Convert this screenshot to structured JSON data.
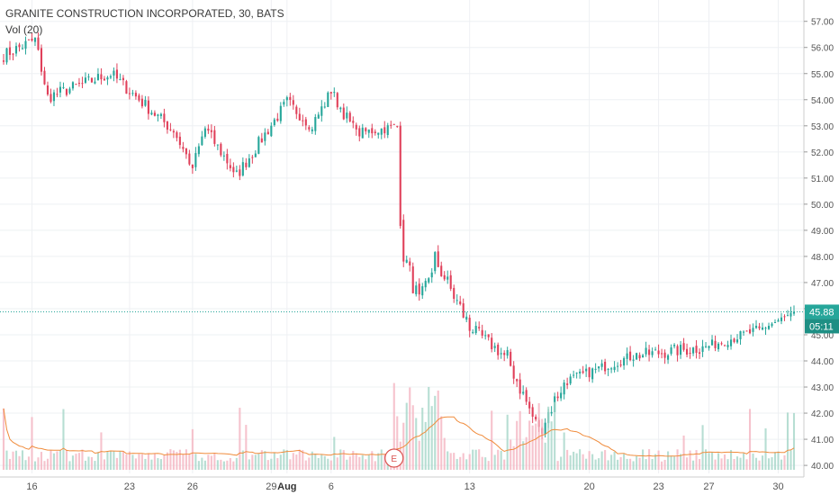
{
  "legend": {
    "title": "GRANITE CONSTRUCTION INCORPORATED, 30, BATS",
    "volume": "Vol (20)"
  },
  "colors": {
    "up": "#26a69a",
    "down": "#e0405a",
    "up_vol": "#a5d6c8",
    "down_vol": "#f4b4c0",
    "ma_line": "#f08c3c",
    "grid": "#eef0f3",
    "price_line": "#26a69a"
  },
  "price_tag": {
    "value": "45.88",
    "countdown": "05:11"
  },
  "earnings_marker": {
    "label": "E",
    "x_index": 124
  },
  "chart_data": {
    "type": "candlestick",
    "y_axis": {
      "ticks": [
        "57.00",
        "56.00",
        "55.00",
        "54.00",
        "53.00",
        "52.00",
        "51.00",
        "50.00",
        "49.00",
        "48.00",
        "47.00",
        "46.00",
        "45.00",
        "44.00",
        "43.00",
        "42.00",
        "41.00",
        "40.00"
      ],
      "range": [
        39.9,
        57.3
      ],
      "position": "right"
    },
    "x_axis": {
      "labels": [
        {
          "text": "16",
          "index": 9,
          "bold": false
        },
        {
          "text": "23",
          "index": 40,
          "bold": false
        },
        {
          "text": "26",
          "index": 60,
          "bold": false
        },
        {
          "text": "29",
          "index": 85,
          "bold": false
        },
        {
          "text": "Aug",
          "index": 90,
          "bold": true
        },
        {
          "text": "6",
          "index": 104,
          "bold": false
        },
        {
          "text": "13",
          "index": 148,
          "bold": false
        },
        {
          "text": "20",
          "index": 186,
          "bold": false
        },
        {
          "text": "23",
          "index": 208,
          "bold": false
        },
        {
          "text": "27",
          "index": 224,
          "bold": false
        },
        {
          "text": "30",
          "index": 246,
          "bold": false
        }
      ],
      "count": 252
    },
    "last_price": 45.88,
    "volume_ma_period": 20,
    "segments": [
      {
        "from": 0,
        "to": 10,
        "start": 55.7,
        "end": 56.3,
        "noise": 0.25
      },
      {
        "from": 10,
        "to": 14,
        "start": 56.3,
        "end": 54.1,
        "noise": 0.25
      },
      {
        "from": 14,
        "to": 34,
        "start": 54.1,
        "end": 55.0,
        "noise": 0.25
      },
      {
        "from": 34,
        "to": 54,
        "start": 55.0,
        "end": 52.8,
        "noise": 0.25
      },
      {
        "from": 54,
        "to": 60,
        "start": 52.8,
        "end": 51.4,
        "noise": 0.2
      },
      {
        "from": 60,
        "to": 64,
        "start": 51.4,
        "end": 52.9,
        "noise": 0.25
      },
      {
        "from": 64,
        "to": 74,
        "start": 52.9,
        "end": 51.1,
        "noise": 0.25
      },
      {
        "from": 74,
        "to": 90,
        "start": 51.1,
        "end": 53.9,
        "noise": 0.25
      },
      {
        "from": 90,
        "to": 98,
        "start": 53.9,
        "end": 53.0,
        "noise": 0.25
      },
      {
        "from": 98,
        "to": 104,
        "start": 53.0,
        "end": 54.3,
        "noise": 0.25
      },
      {
        "from": 104,
        "to": 112,
        "start": 54.3,
        "end": 52.7,
        "noise": 0.25
      },
      {
        "from": 112,
        "to": 126,
        "start": 52.7,
        "end": 53.0,
        "noise": 0.2
      },
      {
        "from": 126,
        "to": 127,
        "start": 49.4,
        "end": 48.1,
        "noise": 0.3
      },
      {
        "from": 127,
        "to": 132,
        "start": 48.1,
        "end": 46.2,
        "noise": 0.4
      },
      {
        "from": 132,
        "to": 137,
        "start": 46.2,
        "end": 47.9,
        "noise": 0.35
      },
      {
        "from": 137,
        "to": 148,
        "start": 47.9,
        "end": 45.3,
        "noise": 0.35
      },
      {
        "from": 148,
        "to": 160,
        "start": 45.3,
        "end": 44.1,
        "noise": 0.25
      },
      {
        "from": 160,
        "to": 170,
        "start": 44.1,
        "end": 41.3,
        "noise": 0.35
      },
      {
        "from": 170,
        "to": 178,
        "start": 41.3,
        "end": 43.2,
        "noise": 0.35
      },
      {
        "from": 178,
        "to": 200,
        "start": 43.2,
        "end": 44.2,
        "noise": 0.2
      },
      {
        "from": 200,
        "to": 222,
        "start": 44.2,
        "end": 44.5,
        "noise": 0.25
      },
      {
        "from": 222,
        "to": 240,
        "start": 44.5,
        "end": 45.2,
        "noise": 0.2
      },
      {
        "from": 240,
        "to": 252,
        "start": 45.2,
        "end": 45.88,
        "noise": 0.15
      }
    ],
    "gaps": [
      [
        126,
        126
      ]
    ]
  }
}
